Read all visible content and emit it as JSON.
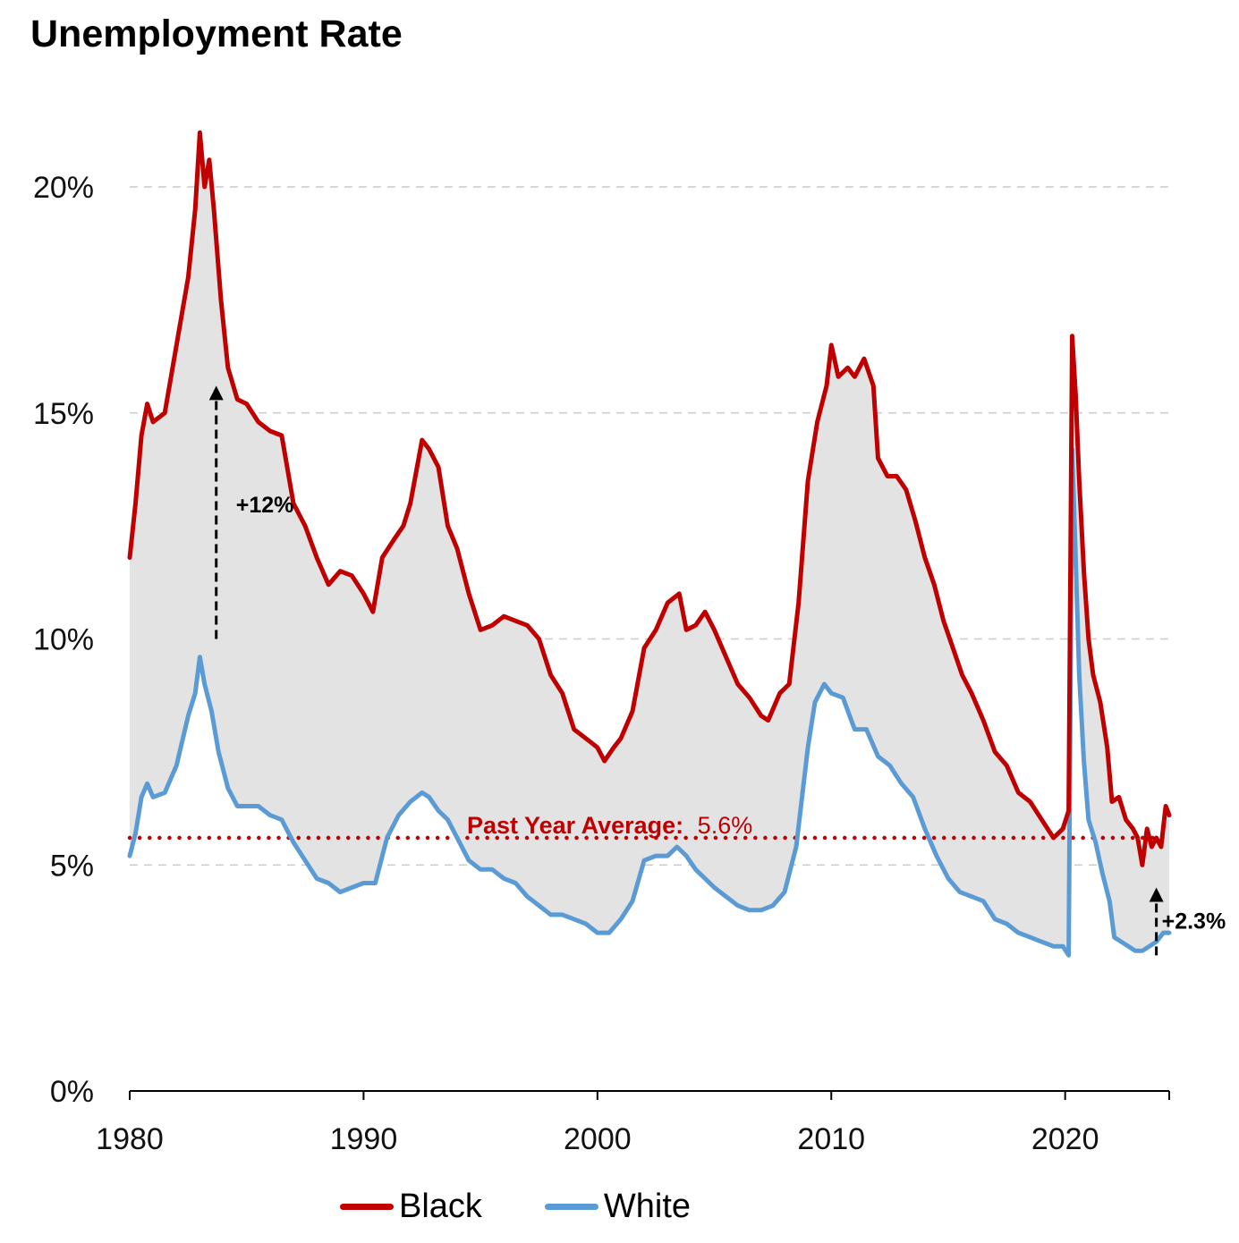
{
  "chart_data": {
    "type": "line",
    "title": "Unemployment Rate",
    "xlabel": "",
    "ylabel": "",
    "xlim": [
      1980.0,
      2024.45
    ],
    "ylim": [
      0,
      21.5
    ],
    "x_ticks": [
      1980,
      1990,
      2000,
      2010,
      2020
    ],
    "x_tick_labels": [
      "1980",
      "1990",
      "2000",
      "2010",
      "2020"
    ],
    "y_ticks": [
      0,
      5,
      10,
      15,
      20
    ],
    "y_tick_labels": [
      "0%",
      "5%",
      "10%",
      "15%",
      "20%"
    ],
    "grid": "horizontal dashed",
    "legend_position": "bottom",
    "fill_between": true,
    "colors": {
      "black_series": "#c00000",
      "white_series": "#5b9bd5",
      "fill": "#e3e3e3",
      "grid": "#cccccc",
      "annotation": "#000000"
    },
    "series": [
      {
        "name": "Black",
        "color": "#c00000",
        "points": [
          [
            1980.0,
            11.8
          ],
          [
            1980.25,
            13.0
          ],
          [
            1980.5,
            14.5
          ],
          [
            1980.75,
            15.2
          ],
          [
            1981.0,
            14.8
          ],
          [
            1981.5,
            15.0
          ],
          [
            1982.0,
            16.5
          ],
          [
            1982.5,
            18.0
          ],
          [
            1982.8,
            19.5
          ],
          [
            1983.0,
            21.2
          ],
          [
            1983.2,
            20.0
          ],
          [
            1983.4,
            20.6
          ],
          [
            1983.6,
            19.5
          ],
          [
            1983.9,
            17.5
          ],
          [
            1984.2,
            16.0
          ],
          [
            1984.6,
            15.3
          ],
          [
            1985.0,
            15.2
          ],
          [
            1985.5,
            14.8
          ],
          [
            1986.0,
            14.6
          ],
          [
            1986.5,
            14.5
          ],
          [
            1987.0,
            13.0
          ],
          [
            1987.5,
            12.5
          ],
          [
            1988.0,
            11.8
          ],
          [
            1988.5,
            11.2
          ],
          [
            1989.0,
            11.5
          ],
          [
            1989.5,
            11.4
          ],
          [
            1990.0,
            11.0
          ],
          [
            1990.4,
            10.6
          ],
          [
            1990.8,
            11.8
          ],
          [
            1991.3,
            12.2
          ],
          [
            1991.7,
            12.5
          ],
          [
            1992.0,
            13.0
          ],
          [
            1992.5,
            14.4
          ],
          [
            1992.8,
            14.2
          ],
          [
            1993.2,
            13.8
          ],
          [
            1993.6,
            12.5
          ],
          [
            1994.0,
            12.0
          ],
          [
            1994.5,
            11.0
          ],
          [
            1995.0,
            10.2
          ],
          [
            1995.5,
            10.3
          ],
          [
            1996.0,
            10.5
          ],
          [
            1996.5,
            10.4
          ],
          [
            1997.0,
            10.3
          ],
          [
            1997.5,
            10.0
          ],
          [
            1998.0,
            9.2
          ],
          [
            1998.5,
            8.8
          ],
          [
            1999.0,
            8.0
          ],
          [
            1999.5,
            7.8
          ],
          [
            2000.0,
            7.6
          ],
          [
            2000.3,
            7.3
          ],
          [
            2000.7,
            7.6
          ],
          [
            2001.0,
            7.8
          ],
          [
            2001.5,
            8.4
          ],
          [
            2002.0,
            9.8
          ],
          [
            2002.5,
            10.2
          ],
          [
            2003.0,
            10.8
          ],
          [
            2003.5,
            11.0
          ],
          [
            2003.8,
            10.2
          ],
          [
            2004.2,
            10.3
          ],
          [
            2004.6,
            10.6
          ],
          [
            2005.0,
            10.2
          ],
          [
            2005.5,
            9.6
          ],
          [
            2006.0,
            9.0
          ],
          [
            2006.5,
            8.7
          ],
          [
            2007.0,
            8.3
          ],
          [
            2007.3,
            8.2
          ],
          [
            2007.8,
            8.8
          ],
          [
            2008.2,
            9.0
          ],
          [
            2008.6,
            10.8
          ],
          [
            2009.0,
            13.5
          ],
          [
            2009.4,
            14.8
          ],
          [
            2009.8,
            15.6
          ],
          [
            2010.0,
            16.5
          ],
          [
            2010.3,
            15.8
          ],
          [
            2010.7,
            16.0
          ],
          [
            2011.0,
            15.8
          ],
          [
            2011.4,
            16.2
          ],
          [
            2011.8,
            15.6
          ],
          [
            2012.0,
            14.0
          ],
          [
            2012.4,
            13.6
          ],
          [
            2012.8,
            13.6
          ],
          [
            2013.2,
            13.3
          ],
          [
            2013.6,
            12.6
          ],
          [
            2014.0,
            11.8
          ],
          [
            2014.4,
            11.2
          ],
          [
            2014.8,
            10.4
          ],
          [
            2015.2,
            9.8
          ],
          [
            2015.6,
            9.2
          ],
          [
            2016.0,
            8.8
          ],
          [
            2016.5,
            8.2
          ],
          [
            2017.0,
            7.5
          ],
          [
            2017.5,
            7.2
          ],
          [
            2018.0,
            6.6
          ],
          [
            2018.5,
            6.4
          ],
          [
            2019.0,
            6.0
          ],
          [
            2019.5,
            5.6
          ],
          [
            2019.9,
            5.8
          ],
          [
            2020.15,
            6.2
          ],
          [
            2020.3,
            16.7
          ],
          [
            2020.45,
            15.4
          ],
          [
            2020.6,
            13.5
          ],
          [
            2020.8,
            11.5
          ],
          [
            2021.0,
            10.0
          ],
          [
            2021.2,
            9.2
          ],
          [
            2021.5,
            8.6
          ],
          [
            2021.8,
            7.6
          ],
          [
            2022.0,
            6.4
          ],
          [
            2022.3,
            6.5
          ],
          [
            2022.6,
            6.0
          ],
          [
            2022.9,
            5.8
          ],
          [
            2023.1,
            5.6
          ],
          [
            2023.3,
            5.0
          ],
          [
            2023.5,
            5.8
          ],
          [
            2023.7,
            5.4
          ],
          [
            2023.9,
            5.6
          ],
          [
            2024.1,
            5.4
          ],
          [
            2024.3,
            6.3
          ],
          [
            2024.45,
            6.1
          ]
        ]
      },
      {
        "name": "White",
        "color": "#5b9bd5",
        "points": [
          [
            1980.0,
            5.2
          ],
          [
            1980.25,
            5.7
          ],
          [
            1980.5,
            6.5
          ],
          [
            1980.75,
            6.8
          ],
          [
            1981.0,
            6.5
          ],
          [
            1981.5,
            6.6
          ],
          [
            1982.0,
            7.2
          ],
          [
            1982.5,
            8.3
          ],
          [
            1982.8,
            8.8
          ],
          [
            1983.0,
            9.6
          ],
          [
            1983.2,
            9.0
          ],
          [
            1983.5,
            8.4
          ],
          [
            1983.8,
            7.5
          ],
          [
            1984.2,
            6.7
          ],
          [
            1984.6,
            6.3
          ],
          [
            1985.0,
            6.3
          ],
          [
            1985.5,
            6.3
          ],
          [
            1986.0,
            6.1
          ],
          [
            1986.5,
            6.0
          ],
          [
            1987.0,
            5.5
          ],
          [
            1987.5,
            5.1
          ],
          [
            1988.0,
            4.7
          ],
          [
            1988.5,
            4.6
          ],
          [
            1989.0,
            4.4
          ],
          [
            1989.5,
            4.5
          ],
          [
            1990.0,
            4.6
          ],
          [
            1990.5,
            4.6
          ],
          [
            1991.0,
            5.6
          ],
          [
            1991.5,
            6.1
          ],
          [
            1992.0,
            6.4
          ],
          [
            1992.5,
            6.6
          ],
          [
            1992.8,
            6.5
          ],
          [
            1993.2,
            6.2
          ],
          [
            1993.6,
            6.0
          ],
          [
            1994.0,
            5.6
          ],
          [
            1994.5,
            5.1
          ],
          [
            1995.0,
            4.9
          ],
          [
            1995.5,
            4.9
          ],
          [
            1996.0,
            4.7
          ],
          [
            1996.5,
            4.6
          ],
          [
            1997.0,
            4.3
          ],
          [
            1997.5,
            4.1
          ],
          [
            1998.0,
            3.9
          ],
          [
            1998.5,
            3.9
          ],
          [
            1999.0,
            3.8
          ],
          [
            1999.5,
            3.7
          ],
          [
            2000.0,
            3.5
          ],
          [
            2000.5,
            3.5
          ],
          [
            2001.0,
            3.8
          ],
          [
            2001.5,
            4.2
          ],
          [
            2002.0,
            5.1
          ],
          [
            2002.5,
            5.2
          ],
          [
            2003.0,
            5.2
          ],
          [
            2003.4,
            5.4
          ],
          [
            2003.8,
            5.2
          ],
          [
            2004.2,
            4.9
          ],
          [
            2004.6,
            4.7
          ],
          [
            2005.0,
            4.5
          ],
          [
            2005.5,
            4.3
          ],
          [
            2006.0,
            4.1
          ],
          [
            2006.5,
            4.0
          ],
          [
            2007.0,
            4.0
          ],
          [
            2007.5,
            4.1
          ],
          [
            2008.0,
            4.4
          ],
          [
            2008.5,
            5.4
          ],
          [
            2009.0,
            7.6
          ],
          [
            2009.3,
            8.6
          ],
          [
            2009.7,
            9.0
          ],
          [
            2010.0,
            8.8
          ],
          [
            2010.5,
            8.7
          ],
          [
            2011.0,
            8.0
          ],
          [
            2011.5,
            8.0
          ],
          [
            2012.0,
            7.4
          ],
          [
            2012.5,
            7.2
          ],
          [
            2013.0,
            6.8
          ],
          [
            2013.5,
            6.5
          ],
          [
            2014.0,
            5.8
          ],
          [
            2014.5,
            5.2
          ],
          [
            2015.0,
            4.7
          ],
          [
            2015.5,
            4.4
          ],
          [
            2016.0,
            4.3
          ],
          [
            2016.5,
            4.2
          ],
          [
            2017.0,
            3.8
          ],
          [
            2017.5,
            3.7
          ],
          [
            2018.0,
            3.5
          ],
          [
            2018.5,
            3.4
          ],
          [
            2019.0,
            3.3
          ],
          [
            2019.5,
            3.2
          ],
          [
            2019.9,
            3.2
          ],
          [
            2020.15,
            3.0
          ],
          [
            2020.3,
            14.2
          ],
          [
            2020.45,
            11.8
          ],
          [
            2020.6,
            9.2
          ],
          [
            2020.8,
            7.3
          ],
          [
            2021.0,
            6.0
          ],
          [
            2021.3,
            5.5
          ],
          [
            2021.6,
            4.8
          ],
          [
            2021.9,
            4.2
          ],
          [
            2022.1,
            3.4
          ],
          [
            2022.4,
            3.3
          ],
          [
            2022.7,
            3.2
          ],
          [
            2023.0,
            3.1
          ],
          [
            2023.3,
            3.1
          ],
          [
            2023.6,
            3.2
          ],
          [
            2023.9,
            3.3
          ],
          [
            2024.2,
            3.5
          ],
          [
            2024.45,
            3.5
          ]
        ]
      }
    ],
    "reference_line": {
      "value": 5.6,
      "label": "Past Year Average:",
      "value_label": "5.6%"
    },
    "annotations": [
      {
        "text": "+12%",
        "x": 1983.7,
        "from": 10.0,
        "to": 15.6
      },
      {
        "text": "+2.3%",
        "x": 2023.9,
        "from": 3.0,
        "to": 4.5
      }
    ]
  }
}
